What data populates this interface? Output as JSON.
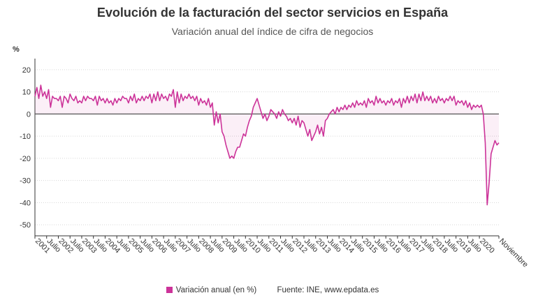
{
  "chart_data": {
    "type": "line",
    "title": "Evolución de la facturación del sector servicios en España",
    "subtitle": "Variación anual del índice de cifra de negocios",
    "ylabel": "%",
    "ylim": [
      -55,
      25
    ],
    "y_ticks": [
      20,
      10,
      0,
      -10,
      -20,
      -30,
      -40,
      -50
    ],
    "grid": true,
    "legend": "bottom",
    "x_start": "2001-01",
    "x_end": "2020-11",
    "x_tick_labels": [
      "2001",
      "Julio",
      "2002",
      "Julio",
      "2003",
      "Julio",
      "2004",
      "Julio",
      "2005",
      "Julio",
      "2006",
      "Julio",
      "2007",
      "Julio",
      "2008",
      "Julio",
      "2009",
      "Julio",
      "2010",
      "Julio",
      "2011",
      "Julio",
      "2012",
      "Julio",
      "2013",
      "Julio",
      "2014",
      "Julio",
      "2015",
      "Julio",
      "2016",
      "Julio",
      "2017",
      "Julio",
      "2018",
      "Julio",
      "2019",
      "Julio",
      "2020",
      "Noviembre"
    ],
    "series": [
      {
        "name": "Variación anual (en %)",
        "color": "#cc3399",
        "values": [
          8,
          12,
          7,
          13,
          8,
          10,
          7,
          11,
          3,
          8,
          7,
          7,
          6,
          8,
          3,
          8,
          7,
          5,
          9,
          7,
          6,
          8,
          5,
          6,
          5,
          8,
          6,
          8,
          7,
          7,
          6,
          8,
          4,
          8,
          6,
          7,
          5,
          7,
          5,
          6,
          4,
          7,
          5,
          7,
          6,
          8,
          7,
          7,
          5,
          8,
          6,
          9,
          5,
          7,
          6,
          8,
          6,
          8,
          7,
          9,
          5,
          9,
          6,
          10,
          6,
          9,
          7,
          8,
          6,
          9,
          8,
          11,
          3,
          10,
          5,
          9,
          6,
          8,
          7,
          9,
          7,
          8,
          6,
          8,
          4,
          7,
          5,
          6,
          4,
          7,
          3,
          5,
          -5,
          1,
          -4,
          0,
          -8,
          -10,
          -14,
          -17,
          -20,
          -19,
          -20,
          -17,
          -15,
          -15,
          -12,
          -9,
          -10,
          -6,
          -3,
          -1,
          3,
          5,
          7,
          4,
          1,
          -2,
          0,
          -3,
          -1,
          2,
          1,
          0,
          -2,
          1,
          -1,
          2,
          0,
          -1,
          -3,
          -2,
          -4,
          -2,
          -5,
          -1,
          -6,
          -3,
          -4,
          -7,
          -10,
          -7,
          -12,
          -10,
          -8,
          -5,
          -9,
          -6,
          -10,
          -3,
          -2,
          0,
          1,
          2,
          0,
          3,
          1,
          3,
          2,
          4,
          2,
          4,
          3,
          5,
          3,
          6,
          4,
          5,
          4,
          6,
          3,
          7,
          5,
          6,
          4,
          8,
          5,
          7,
          5,
          6,
          4,
          6,
          5,
          7,
          4,
          6,
          5,
          7,
          3,
          7,
          5,
          8,
          5,
          8,
          6,
          9,
          5,
          9,
          6,
          10,
          6,
          8,
          6,
          8,
          5,
          7,
          5,
          8,
          6,
          7,
          5,
          7,
          6,
          8,
          6,
          8,
          4,
          6,
          5,
          6,
          4,
          6,
          3,
          5,
          2,
          4,
          3,
          4,
          3,
          4,
          0,
          -13,
          -41,
          -31,
          -18,
          -15,
          -12,
          -14,
          -13
        ]
      }
    ]
  },
  "footer": {
    "legend_label": "Variación anual (en %)",
    "source": "Fuente: INE, www.epdata.es"
  }
}
